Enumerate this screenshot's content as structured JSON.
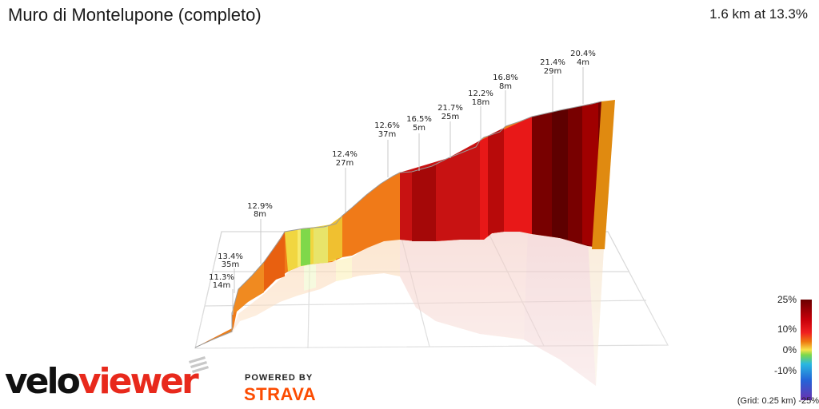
{
  "header": {
    "title": "Muro di Montelupone (completo)",
    "summary": "1.6 km at 13.3%"
  },
  "annotations": [
    {
      "gradient": "11.3%",
      "length": "14m"
    },
    {
      "gradient": "13.4%",
      "length": "35m"
    },
    {
      "gradient": "12.9%",
      "length": "8m"
    },
    {
      "gradient": "12.4%",
      "length": "27m"
    },
    {
      "gradient": "12.6%",
      "length": "37m"
    },
    {
      "gradient": "16.5%",
      "length": "5m"
    },
    {
      "gradient": "21.7%",
      "length": "25m"
    },
    {
      "gradient": "12.2%",
      "length": "18m"
    },
    {
      "gradient": "16.8%",
      "length": "8m"
    },
    {
      "gradient": "21.4%",
      "length": "29m"
    },
    {
      "gradient": "20.4%",
      "length": "4m"
    }
  ],
  "legend": {
    "labels": [
      "25%",
      "10%",
      "0%",
      "-10%",
      "-25%"
    ],
    "grid_note": "(Grid: 0.25 km)",
    "colors": [
      "#6b0000",
      "#c8000a",
      "#f02020",
      "#ee7a10",
      "#f6e24a",
      "#7cd84a",
      "#2ab8e0",
      "#2464d8",
      "#6a30b0"
    ]
  },
  "branding": {
    "logo_part1": "velo",
    "logo_part2": "viewer",
    "powered_by": "POWERED BY",
    "strava": "STRAVA"
  }
}
